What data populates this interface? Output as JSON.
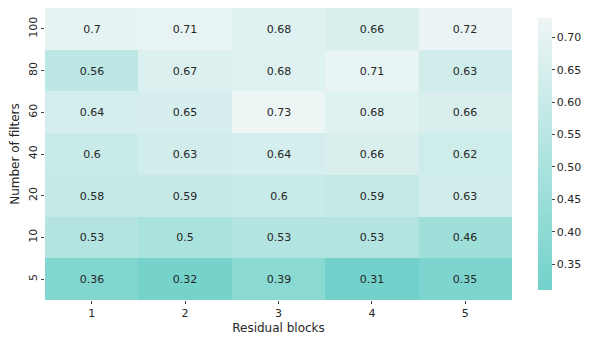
{
  "chart_data": {
    "type": "heatmap",
    "x_title": "Residual blocks",
    "y_title": "Number of filters",
    "x_categories": [
      "1",
      "2",
      "3",
      "4",
      "5"
    ],
    "y_categories": [
      "5",
      "10",
      "20",
      "40",
      "60",
      "80",
      "100"
    ],
    "cells": [
      [
        0.36,
        0.32,
        0.39,
        0.31,
        0.35
      ],
      [
        0.53,
        0.5,
        0.53,
        0.53,
        0.46
      ],
      [
        0.58,
        0.59,
        0.6,
        0.59,
        0.63
      ],
      [
        0.6,
        0.63,
        0.64,
        0.66,
        0.62
      ],
      [
        0.64,
        0.65,
        0.73,
        0.68,
        0.66
      ],
      [
        0.56,
        0.67,
        0.68,
        0.71,
        0.63
      ],
      [
        0.7,
        0.71,
        0.68,
        0.66,
        0.72
      ]
    ],
    "data_labels": true,
    "colorbar_range": [
      0.31,
      0.73
    ],
    "colorbar_ticks": [
      0.35,
      {
        "value": 0.4,
        "label": "0.40"
      },
      0.45,
      {
        "value": 0.5,
        "label": "0.50"
      },
      0.55,
      {
        "value": 0.6,
        "label": "0.60"
      },
      0.65,
      {
        "value": 0.7,
        "label": "0.70"
      }
    ],
    "colors": [
      "#72d2cb",
      "#eef5f5"
    ]
  }
}
